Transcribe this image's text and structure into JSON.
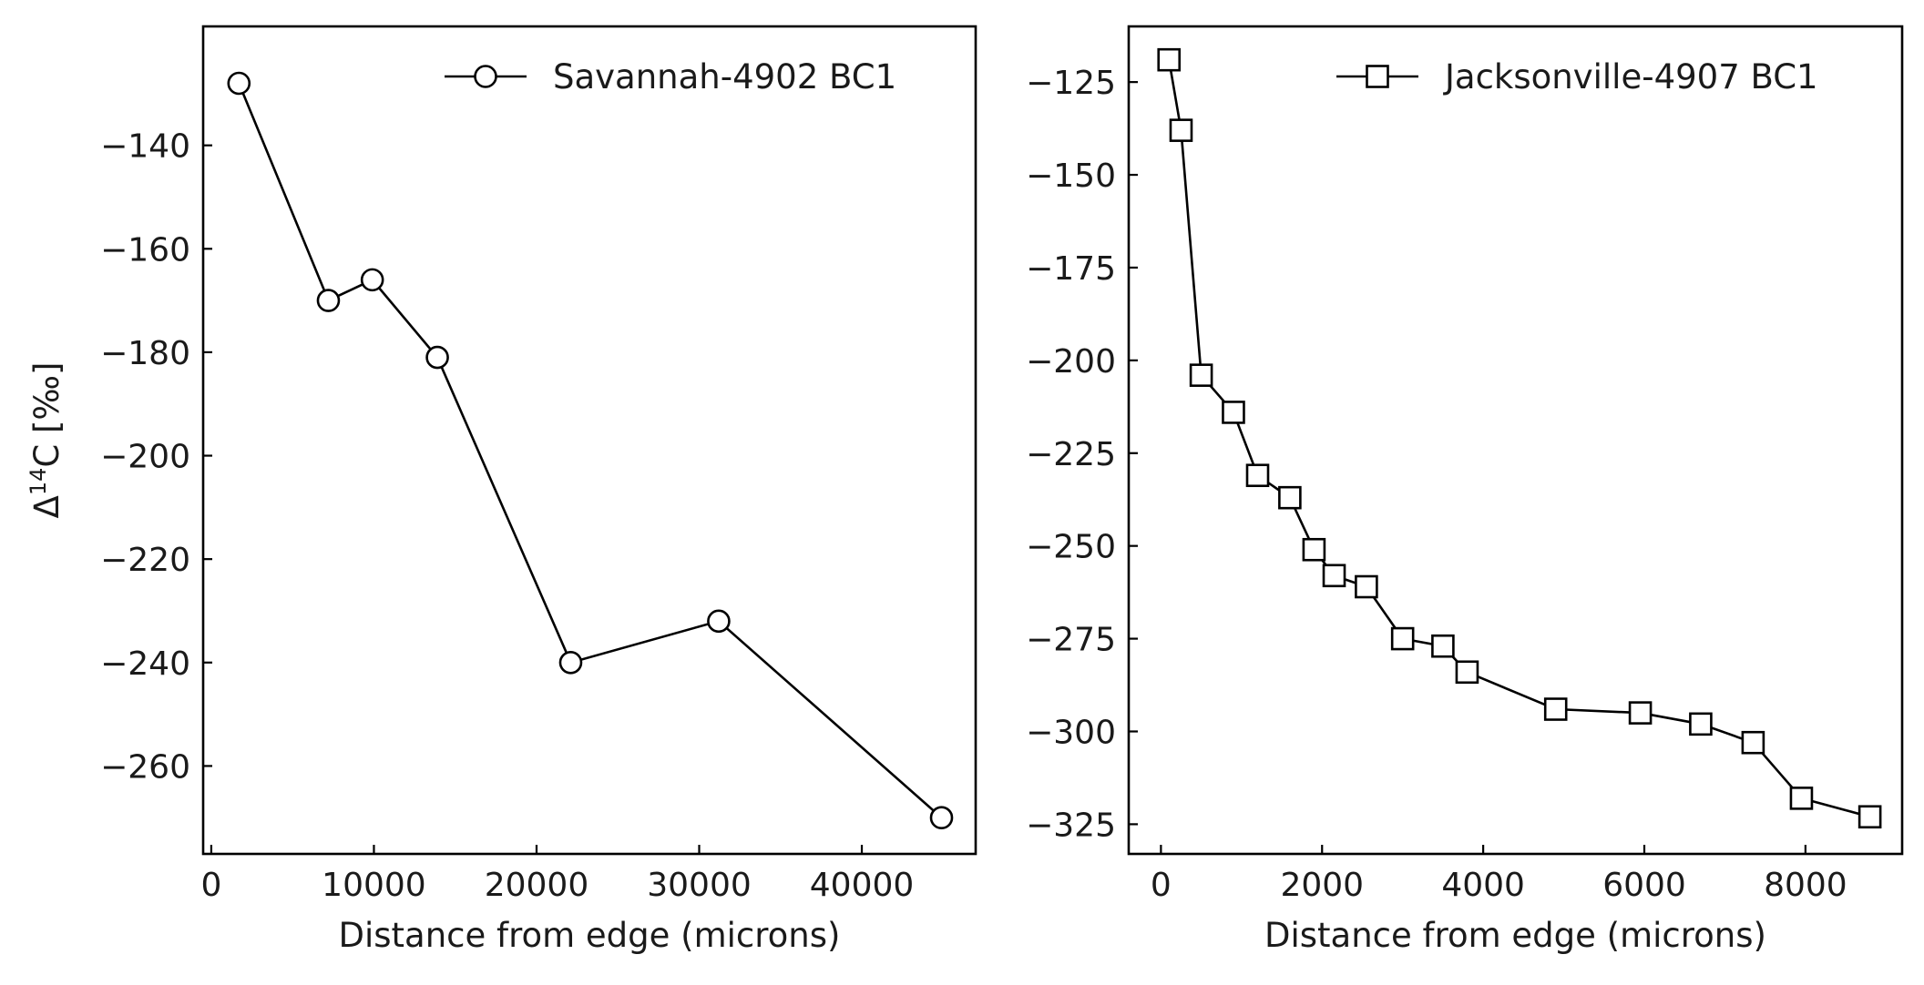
{
  "chart_data": [
    {
      "type": "line",
      "xlabel": "Distance from edge (microns)",
      "ylabel_base": "Δ",
      "ylabel_sup": "14",
      "ylabel_rest": "C [‰]",
      "xlim": [
        -500,
        47000
      ],
      "ylim": [
        -277,
        -117
      ],
      "xticks": [
        0,
        10000,
        20000,
        30000,
        40000
      ],
      "yticks": [
        -140,
        -160,
        -180,
        -200,
        -220,
        -240,
        -260
      ],
      "legend_position": "top-right",
      "series": [
        {
          "name": "Savannah-4902 BC1",
          "marker": "circle",
          "x": [
            1700,
            7200,
            9900,
            13900,
            22100,
            31200,
            44900
          ],
          "y": [
            -128,
            -170,
            -166,
            -181,
            -240,
            -232,
            -270
          ]
        }
      ]
    },
    {
      "type": "line",
      "xlabel": "Distance from edge (microns)",
      "ylabel_base": "",
      "ylabel_sup": "",
      "ylabel_rest": "",
      "xlim": [
        -400,
        9200
      ],
      "ylim": [
        -333,
        -110
      ],
      "xticks": [
        0,
        2000,
        4000,
        6000,
        8000
      ],
      "yticks": [
        -125,
        -150,
        -175,
        -200,
        -225,
        -250,
        -275,
        -300,
        -325
      ],
      "legend_position": "top-right",
      "series": [
        {
          "name": "Jacksonville-4907 BC1",
          "marker": "square",
          "x": [
            100,
            250,
            500,
            900,
            1200,
            1600,
            1900,
            2150,
            2550,
            3000,
            3500,
            3800,
            4900,
            5950,
            6700,
            7350,
            7950,
            8800
          ],
          "y": [
            -119,
            -138,
            -204,
            -214,
            -231,
            -237,
            -251,
            -258,
            -261,
            -275,
            -277,
            -284,
            -294,
            -295,
            -298,
            -303,
            -318,
            -323
          ]
        }
      ]
    }
  ]
}
